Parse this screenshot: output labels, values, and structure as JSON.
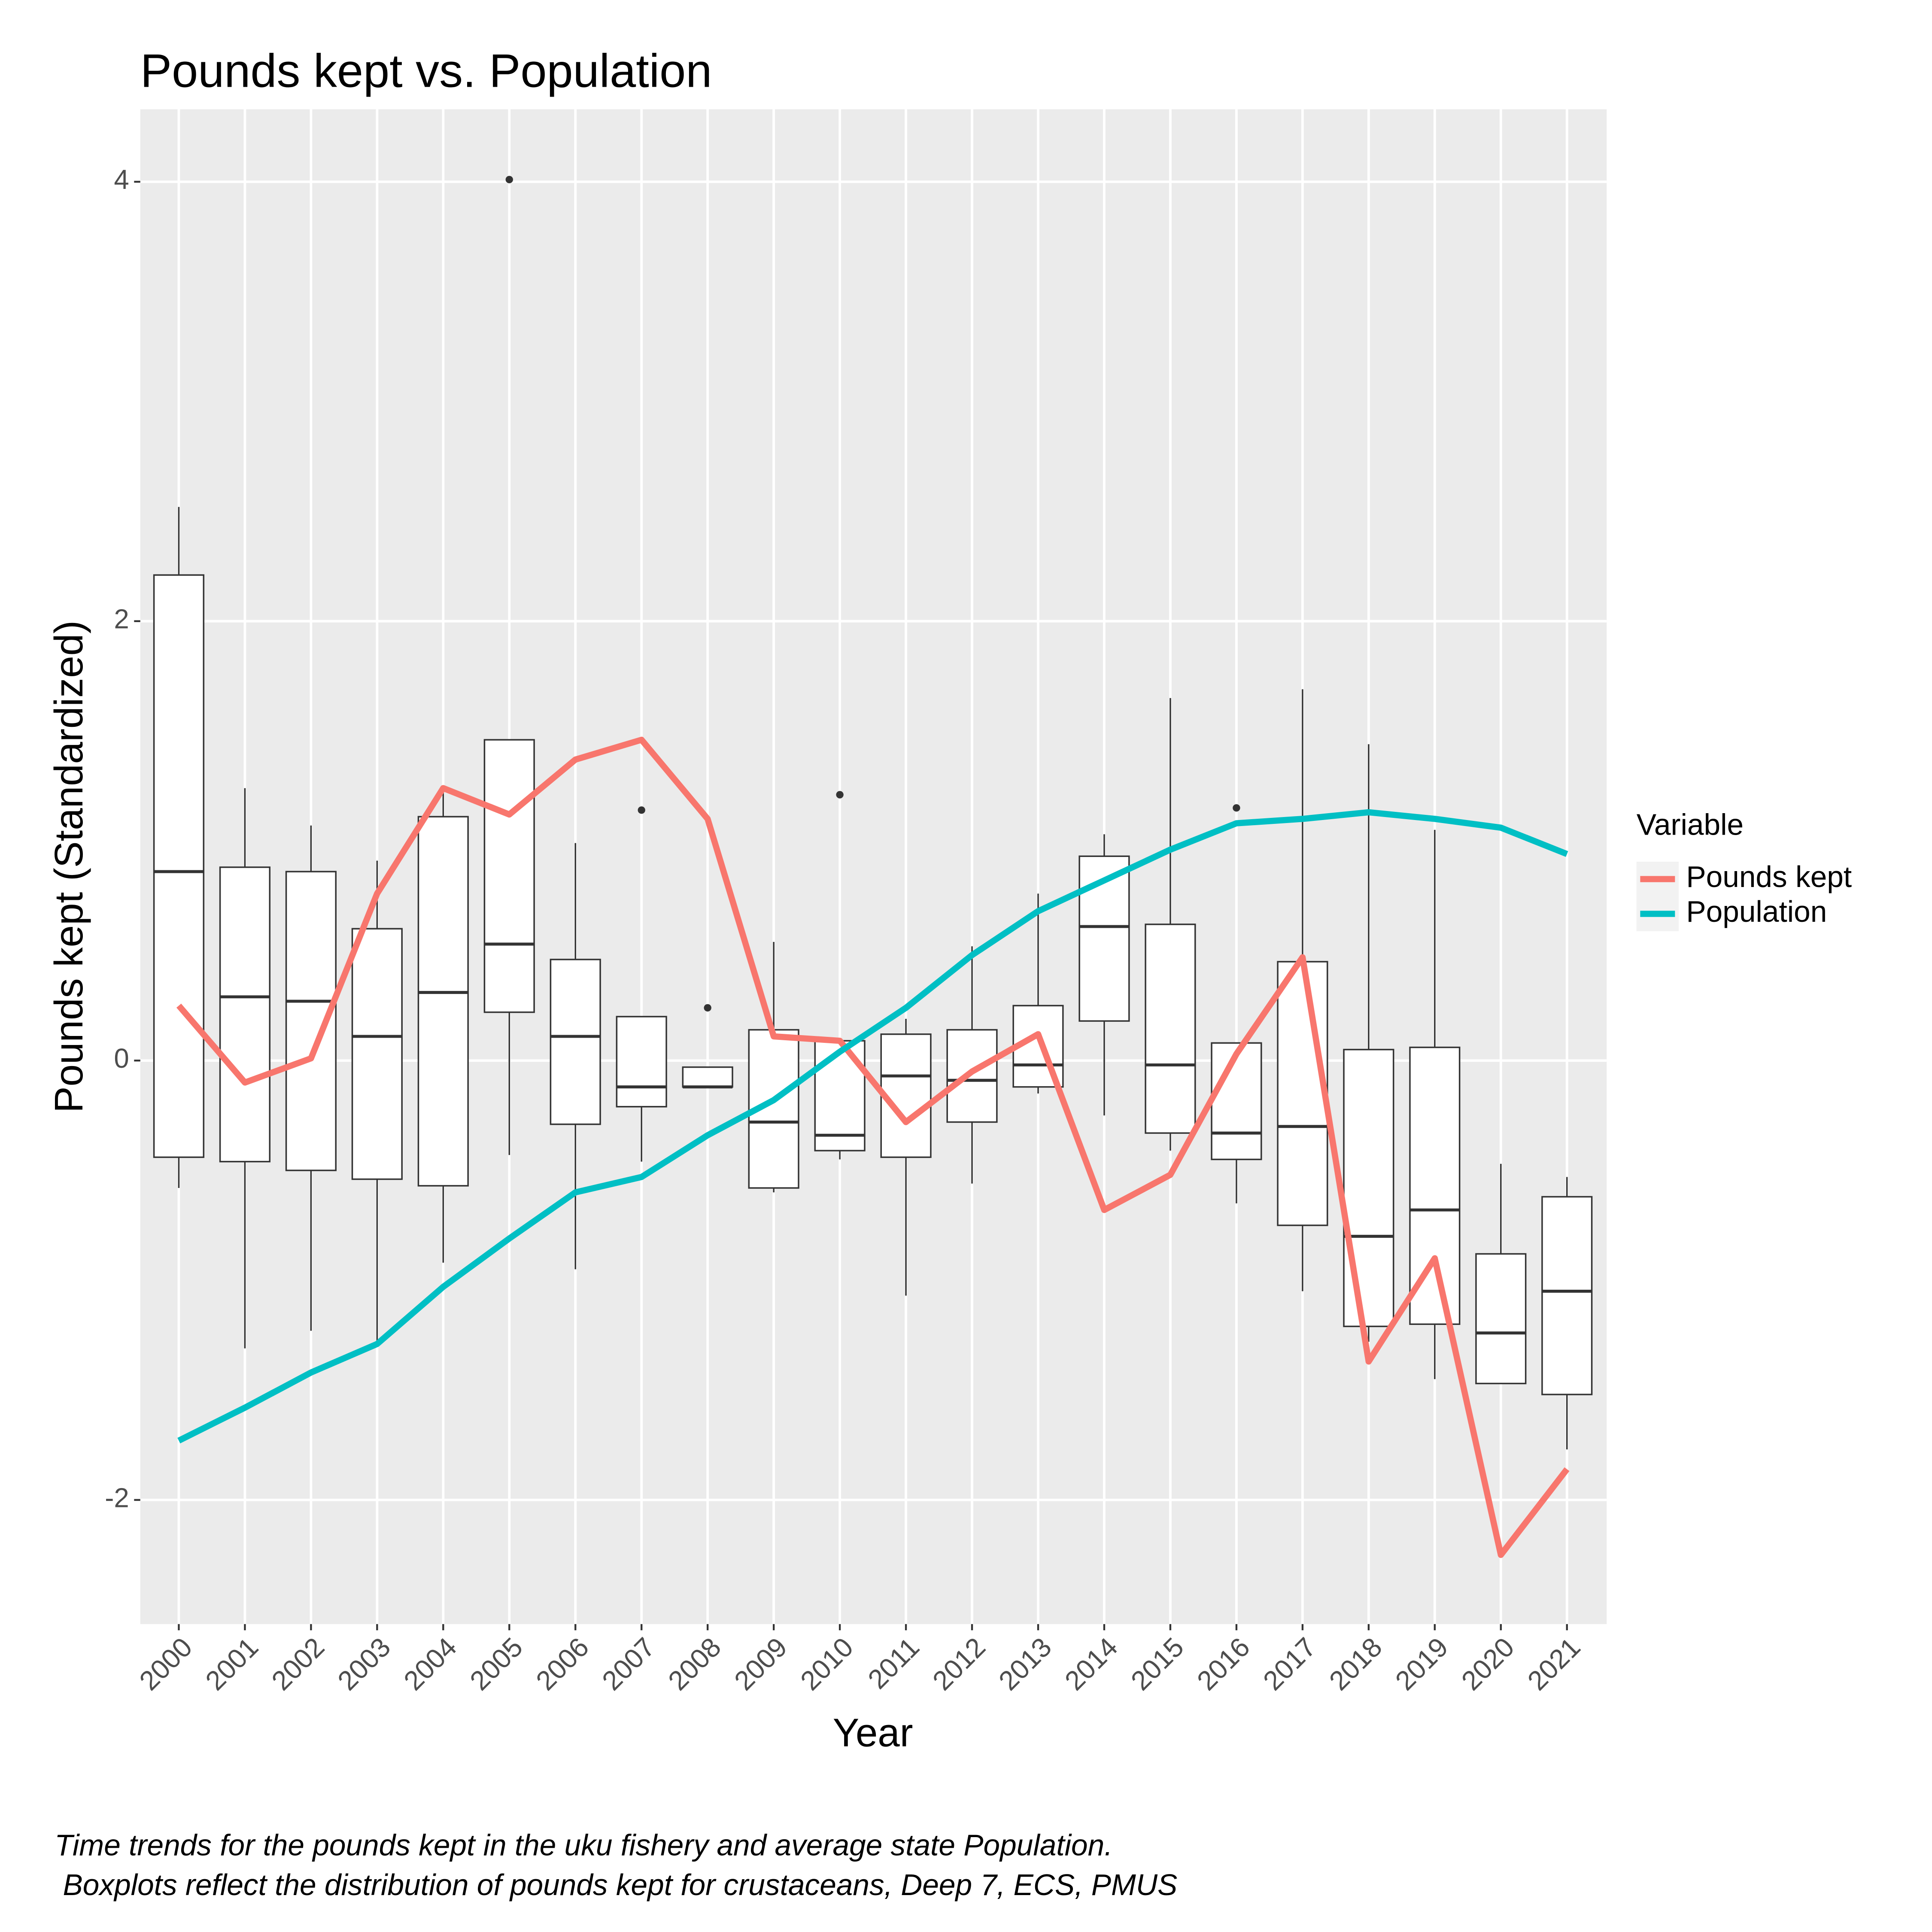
{
  "chart_data": {
    "type": "box",
    "title": "Pounds kept vs. Population",
    "x_label": "Year",
    "y_label": "Pounds kept (Standardized)",
    "caption": [
      "Time trends for the pounds kept in the uku fishery and average state Population.",
      " Boxplots reflect the distribution of pounds kept for crustaceans, Deep 7, ECS, PMUS"
    ],
    "categories": [
      "2000",
      "2001",
      "2002",
      "2003",
      "2004",
      "2005",
      "2006",
      "2007",
      "2008",
      "2009",
      "2010",
      "2011",
      "2012",
      "2013",
      "2014",
      "2015",
      "2016",
      "2017",
      "2018",
      "2019",
      "2020",
      "2021"
    ],
    "ylim": [
      -2.565,
      4.33
    ],
    "yticks": [
      -2,
      0,
      2,
      4
    ],
    "grid": true,
    "box_color": "#333333",
    "boxes": [
      {
        "whisker_low": -0.58,
        "q1": -0.44,
        "median": 0.86,
        "q3": 2.21,
        "whisker_high": 2.52,
        "outliers": []
      },
      {
        "whisker_low": -1.31,
        "q1": -0.46,
        "median": 0.29,
        "q3": 0.88,
        "whisker_high": 1.24,
        "outliers": []
      },
      {
        "whisker_low": -1.23,
        "q1": -0.5,
        "median": 0.27,
        "q3": 0.86,
        "whisker_high": 1.07,
        "outliers": []
      },
      {
        "whisker_low": -1.28,
        "q1": -0.54,
        "median": 0.11,
        "q3": 0.6,
        "whisker_high": 0.91,
        "outliers": []
      },
      {
        "whisker_low": -0.92,
        "q1": -0.57,
        "median": 0.31,
        "q3": 1.11,
        "whisker_high": 1.22,
        "outliers": []
      },
      {
        "whisker_low": -0.43,
        "q1": 0.22,
        "median": 0.53,
        "q3": 1.46,
        "whisker_high": 1.46,
        "outliers": [
          4.01
        ]
      },
      {
        "whisker_low": -0.95,
        "q1": -0.29,
        "median": 0.11,
        "q3": 0.46,
        "whisker_high": 0.99,
        "outliers": []
      },
      {
        "whisker_low": -0.46,
        "q1": -0.21,
        "median": -0.12,
        "q3": 0.2,
        "whisker_high": 0.2,
        "outliers": [
          1.14
        ]
      },
      {
        "whisker_low": -0.12,
        "q1": -0.12,
        "median": -0.12,
        "q3": -0.03,
        "whisker_high": -0.03,
        "outliers": [
          0.24
        ]
      },
      {
        "whisker_low": -0.6,
        "q1": -0.58,
        "median": -0.28,
        "q3": 0.14,
        "whisker_high": 0.54,
        "outliers": []
      },
      {
        "whisker_low": -0.45,
        "q1": -0.41,
        "median": -0.34,
        "q3": 0.09,
        "whisker_high": 0.09,
        "outliers": [
          1.21
        ]
      },
      {
        "whisker_low": -1.07,
        "q1": -0.44,
        "median": -0.07,
        "q3": 0.12,
        "whisker_high": 0.19,
        "outliers": []
      },
      {
        "whisker_low": -0.56,
        "q1": -0.28,
        "median": -0.09,
        "q3": 0.14,
        "whisker_high": 0.52,
        "outliers": []
      },
      {
        "whisker_low": -0.15,
        "q1": -0.12,
        "median": -0.02,
        "q3": 0.25,
        "whisker_high": 0.76,
        "outliers": []
      },
      {
        "whisker_low": -0.25,
        "q1": 0.18,
        "median": 0.61,
        "q3": 0.93,
        "whisker_high": 1.03,
        "outliers": []
      },
      {
        "whisker_low": -0.41,
        "q1": -0.33,
        "median": -0.02,
        "q3": 0.62,
        "whisker_high": 1.65,
        "outliers": []
      },
      {
        "whisker_low": -0.65,
        "q1": -0.45,
        "median": -0.33,
        "q3": 0.08,
        "whisker_high": 0.08,
        "outliers": [
          1.15
        ]
      },
      {
        "whisker_low": -1.05,
        "q1": -0.75,
        "median": -0.3,
        "q3": 0.45,
        "whisker_high": 1.69,
        "outliers": []
      },
      {
        "whisker_low": -1.28,
        "q1": -1.21,
        "median": -0.8,
        "q3": 0.05,
        "whisker_high": 1.44,
        "outliers": []
      },
      {
        "whisker_low": -1.45,
        "q1": -1.2,
        "median": -0.68,
        "q3": 0.06,
        "whisker_high": 1.05,
        "outliers": []
      },
      {
        "whisker_low": -1.47,
        "q1": -1.47,
        "median": -1.24,
        "q3": -0.88,
        "whisker_high": -0.47,
        "outliers": []
      },
      {
        "whisker_low": -1.77,
        "q1": -1.52,
        "median": -1.05,
        "q3": -0.62,
        "whisker_high": -0.53,
        "outliers": []
      }
    ],
    "legend_title": "Variable",
    "legend_position": "right",
    "series": [
      {
        "name": "Pounds kept",
        "color": "#f8766d",
        "values": [
          0.25,
          -0.1,
          0.01,
          0.76,
          1.24,
          1.12,
          1.37,
          1.46,
          1.1,
          0.11,
          0.09,
          -0.28,
          -0.05,
          0.12,
          -0.68,
          -0.52,
          0.03,
          0.47,
          -1.37,
          -0.9,
          -2.25,
          -1.86
        ]
      },
      {
        "name": "Population",
        "color": "#00bfc4",
        "values": [
          -1.73,
          -1.58,
          -1.42,
          -1.29,
          -1.03,
          -0.81,
          -0.6,
          -0.53,
          -0.34,
          -0.18,
          0.04,
          0.24,
          0.48,
          0.68,
          0.82,
          0.96,
          1.08,
          1.1,
          1.13,
          1.1,
          1.06,
          0.94
        ]
      }
    ]
  }
}
